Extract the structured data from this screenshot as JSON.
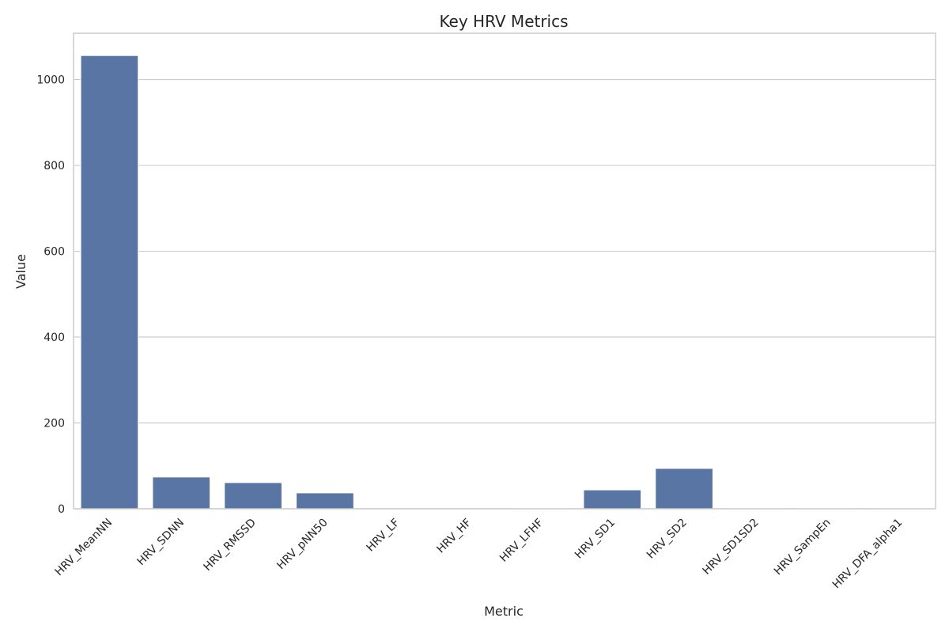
{
  "chart_data": {
    "type": "bar",
    "title": "Key HRV Metrics",
    "xlabel": "Metric",
    "ylabel": "Value",
    "categories": [
      "HRV_MeanNN",
      "HRV_SDNN",
      "HRV_RMSSD",
      "HRV_pNN50",
      "HRV_LF",
      "HRV_HF",
      "HRV_LFHF",
      "HRV_SD1",
      "HRV_SD2",
      "HRV_SD1SD2",
      "HRV_SampEn",
      "HRV_DFA_alpha1"
    ],
    "values": [
      1056,
      74,
      61,
      37,
      0.1,
      0.1,
      1.5,
      44,
      94,
      0.5,
      1.6,
      1.1
    ],
    "ylim": [
      0,
      1108
    ],
    "yticks": [
      0,
      200,
      400,
      600,
      800,
      1000
    ],
    "grid": true,
    "bar_color": "#5975a4"
  }
}
